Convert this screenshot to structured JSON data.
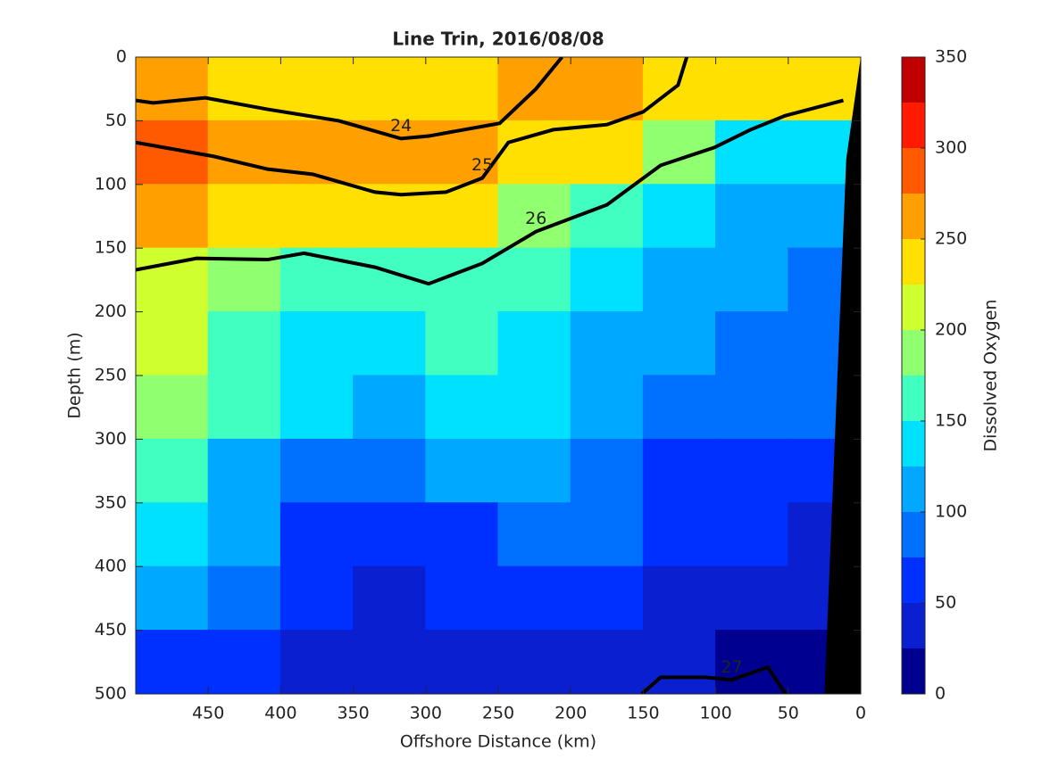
{
  "chart_data": {
    "type": "contourf",
    "title": "Line Trin, 2016/08/08",
    "xlabel": "Offshore Distance (km)",
    "ylabel": "Depth (m)",
    "colorbar_label": "Dissolved Oxygen",
    "xlim": [
      500,
      0
    ],
    "ylim": [
      0,
      500
    ],
    "xticks": [
      450,
      400,
      350,
      300,
      250,
      200,
      150,
      100,
      50,
      0
    ],
    "yticks": [
      0,
      50,
      100,
      150,
      200,
      250,
      300,
      350,
      400,
      450,
      500
    ],
    "x": [
      475,
      425,
      375,
      325,
      275,
      225,
      175,
      125,
      75,
      25
    ],
    "y": [
      25,
      75,
      125,
      175,
      225,
      275,
      325,
      375,
      425,
      475
    ],
    "z": [
      [
        260,
        240,
        240,
        245,
        240,
        260,
        255,
        240,
        240,
        240
      ],
      [
        290,
        260,
        260,
        265,
        265,
        240,
        230,
        190,
        140,
        130
      ],
      [
        255,
        230,
        240,
        235,
        230,
        190,
        150,
        130,
        110,
        100
      ],
      [
        210,
        180,
        170,
        160,
        165,
        155,
        140,
        110,
        100,
        90
      ],
      [
        200,
        170,
        140,
        140,
        160,
        140,
        120,
        100,
        90,
        80
      ],
      [
        190,
        150,
        130,
        120,
        130,
        130,
        110,
        90,
        80,
        75
      ],
      [
        160,
        120,
        95,
        95,
        100,
        110,
        90,
        70,
        60,
        55
      ],
      [
        130,
        110,
        70,
        70,
        70,
        80,
        80,
        60,
        50,
        45
      ],
      [
        100,
        80,
        60,
        45,
        55,
        60,
        55,
        40,
        35,
        30
      ],
      [
        70,
        50,
        35,
        30,
        30,
        40,
        40,
        35,
        20,
        20
      ]
    ],
    "levels": [
      0,
      25,
      50,
      75,
      100,
      125,
      150,
      175,
      200,
      225,
      250,
      275,
      300,
      325,
      350
    ],
    "colors": [
      "#000090",
      "#0a1fd0",
      "#0030ff",
      "#0070ff",
      "#00a8ff",
      "#00e0ff",
      "#40ffc0",
      "#90ff70",
      "#d0ff30",
      "#ffe000",
      "#ffa000",
      "#ff5a00",
      "#ff1a00",
      "#c00000"
    ],
    "colorbar_ticks": [
      0,
      50,
      100,
      150,
      200,
      250,
      300,
      350
    ],
    "contours": [
      {
        "level": 24,
        "x": [
          500,
          488,
          452,
          409,
          360,
          317,
          298,
          249,
          224,
          206
        ],
        "depth": [
          34,
          36,
          32,
          41,
          50,
          64,
          62,
          52,
          25,
          0
        ]
      },
      {
        "level": 25,
        "x": [
          500,
          446,
          409,
          378,
          335,
          317,
          286,
          261,
          243,
          212,
          175,
          150,
          126,
          120
        ],
        "depth": [
          67,
          78,
          88,
          92,
          106,
          108,
          106,
          95,
          67,
          57,
          53,
          43,
          22,
          0
        ]
      },
      {
        "level": 26,
        "x": [
          500,
          458,
          409,
          384,
          335,
          298,
          261,
          224,
          175,
          138,
          101,
          76,
          52,
          12
        ],
        "depth": [
          167,
          158,
          159,
          154,
          165,
          178,
          162,
          137,
          116,
          85,
          71,
          57,
          46,
          34
        ]
      },
      {
        "level": 27,
        "x": [
          151,
          138,
          107,
          89,
          64,
          52
        ],
        "depth": [
          500,
          487,
          487,
          489,
          479,
          500
        ]
      }
    ],
    "bottom": {
      "x": [
        0,
        10,
        25
      ],
      "depth": [
        0,
        80,
        500
      ]
    }
  }
}
